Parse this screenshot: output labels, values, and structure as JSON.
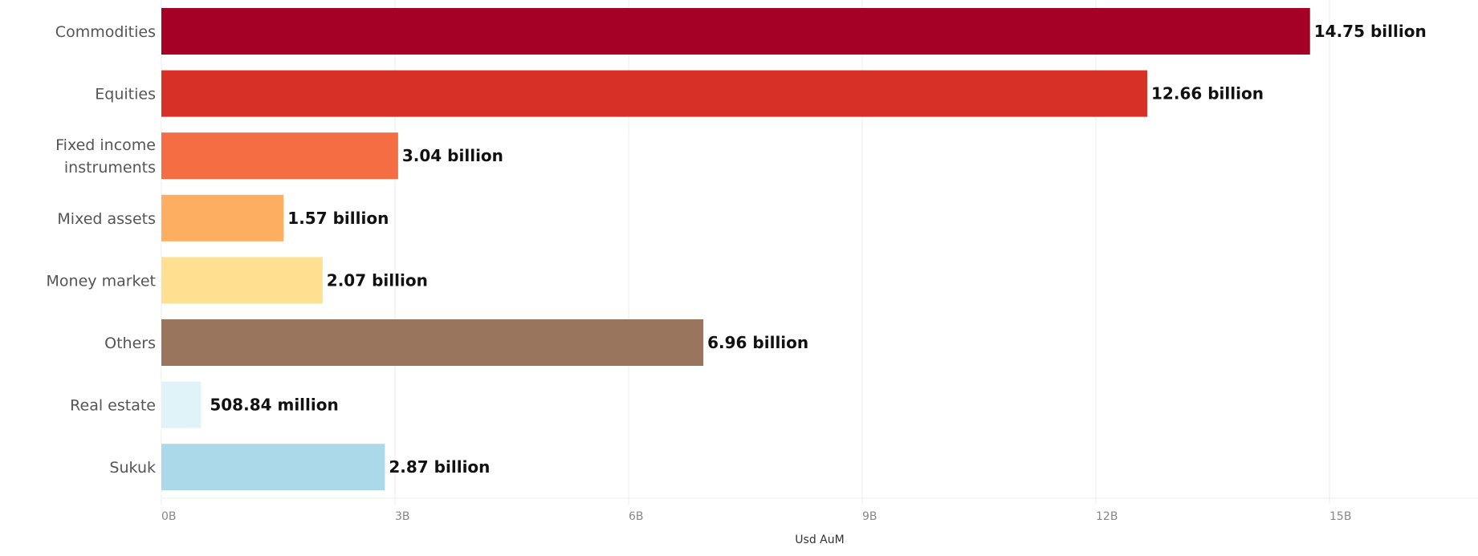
{
  "chart_data": {
    "type": "bar",
    "orientation": "horizontal",
    "title": "",
    "xlabel": "Usd AuM",
    "ylabel": "",
    "xlim": [
      0,
      16.5
    ],
    "x_unit": "billion USD",
    "grid": true,
    "legend": "none",
    "x_ticks": [
      {
        "value": 0,
        "label": "0B"
      },
      {
        "value": 3,
        "label": "3B"
      },
      {
        "value": 6,
        "label": "6B"
      },
      {
        "value": 9,
        "label": "9B"
      },
      {
        "value": 12,
        "label": "12B"
      },
      {
        "value": 15,
        "label": "15B"
      }
    ],
    "categories": [
      {
        "label": [
          "Commodities"
        ],
        "value": 14.75,
        "value_label": "14.75 billion",
        "color": "#a50026"
      },
      {
        "label": [
          "Equities"
        ],
        "value": 12.66,
        "value_label": "12.66 billion",
        "color": "#d73027"
      },
      {
        "label": [
          "Fixed income",
          "instruments"
        ],
        "value": 3.04,
        "value_label": "3.04 billion",
        "color": "#f46d43"
      },
      {
        "label": [
          "Mixed assets"
        ],
        "value": 1.57,
        "value_label": "1.57 billion",
        "color": "#fdae61"
      },
      {
        "label": [
          "Money market"
        ],
        "value": 2.07,
        "value_label": "2.07 billion",
        "color": "#fee090"
      },
      {
        "label": [
          "Others"
        ],
        "value": 6.96,
        "value_label": "6.96 billion",
        "color": "#9a755e"
      },
      {
        "label": [
          "Real estate"
        ],
        "value": 0.50884,
        "value_label": "508.84 million",
        "color": "#e0f3f8"
      },
      {
        "label": [
          "Sukuk"
        ],
        "value": 2.87,
        "value_label": "2.87 billion",
        "color": "#abd9e9"
      }
    ]
  }
}
